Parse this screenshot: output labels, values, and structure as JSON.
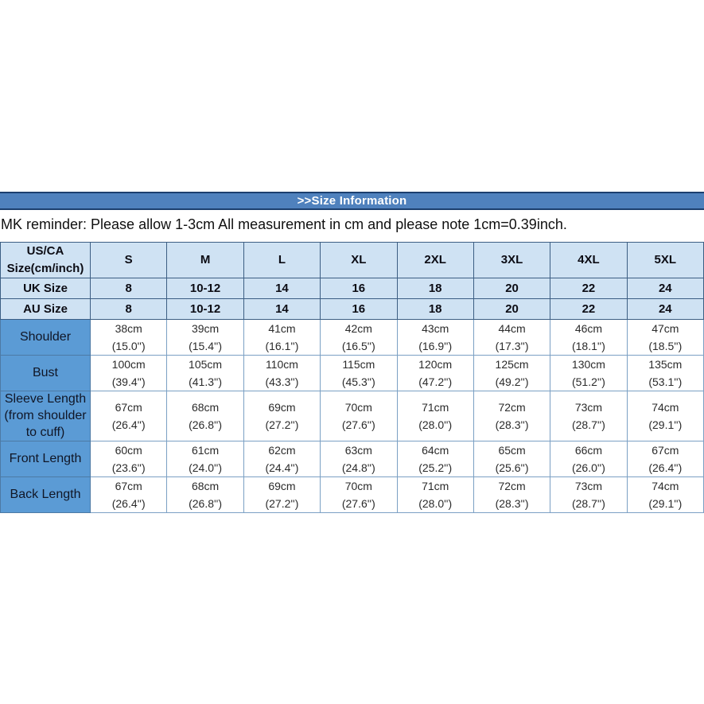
{
  "banner": {
    "title": ">>Size Information"
  },
  "reminder": "MK reminder: Please allow 1-3cm All measurement in cm and please note 1cm=0.39inch.",
  "colors": {
    "banner_bg": "#4f81bd",
    "banner_border": "#1c3f6e",
    "header_cell_bg": "#cfe2f3",
    "label_column_bg": "#5b9bd5",
    "banner_text": "#ffffff"
  },
  "table": {
    "corner_header": "US/CA Size(cm/inch)",
    "size_columns": [
      "S",
      "M",
      "L",
      "XL",
      "2XL",
      "3XL",
      "4XL",
      "5XL"
    ],
    "region_rows": [
      {
        "label": "UK Size",
        "values": [
          "8",
          "10-12",
          "14",
          "16",
          "18",
          "20",
          "22",
          "24"
        ]
      },
      {
        "label": "AU Size",
        "values": [
          "8",
          "10-12",
          "14",
          "16",
          "18",
          "20",
          "22",
          "24"
        ]
      }
    ],
    "measurement_rows": [
      {
        "label": "Shoulder",
        "cells": [
          {
            "cm": "38cm",
            "inch": "(15.0'')"
          },
          {
            "cm": "39cm",
            "inch": "(15.4'')"
          },
          {
            "cm": "41cm",
            "inch": "(16.1'')"
          },
          {
            "cm": "42cm",
            "inch": "(16.5'')"
          },
          {
            "cm": "43cm",
            "inch": "(16.9'')"
          },
          {
            "cm": "44cm",
            "inch": "(17.3'')"
          },
          {
            "cm": "46cm",
            "inch": "(18.1'')"
          },
          {
            "cm": "47cm",
            "inch": "(18.5'')"
          }
        ]
      },
      {
        "label": "Bust",
        "cells": [
          {
            "cm": "100cm",
            "inch": "(39.4'')"
          },
          {
            "cm": "105cm",
            "inch": "(41.3'')"
          },
          {
            "cm": "110cm",
            "inch": "(43.3'')"
          },
          {
            "cm": "115cm",
            "inch": "(45.3'')"
          },
          {
            "cm": "120cm",
            "inch": "(47.2'')"
          },
          {
            "cm": "125cm",
            "inch": "(49.2'')"
          },
          {
            "cm": "130cm",
            "inch": "(51.2'')"
          },
          {
            "cm": "135cm",
            "inch": "(53.1'')"
          }
        ]
      },
      {
        "label": "Sleeve Length (from shoulder to cuff)",
        "cells": [
          {
            "cm": "67cm",
            "inch": "(26.4'')"
          },
          {
            "cm": "68cm",
            "inch": "(26.8'')"
          },
          {
            "cm": "69cm",
            "inch": "(27.2'')"
          },
          {
            "cm": "70cm",
            "inch": "(27.6'')"
          },
          {
            "cm": "71cm",
            "inch": "(28.0'')"
          },
          {
            "cm": "72cm",
            "inch": "(28.3'')"
          },
          {
            "cm": "73cm",
            "inch": "(28.7'')"
          },
          {
            "cm": "74cm",
            "inch": "(29.1'')"
          }
        ]
      },
      {
        "label": "Front Length",
        "cells": [
          {
            "cm": "60cm",
            "inch": "(23.6'')"
          },
          {
            "cm": "61cm",
            "inch": "(24.0'')"
          },
          {
            "cm": "62cm",
            "inch": "(24.4'')"
          },
          {
            "cm": "63cm",
            "inch": "(24.8'')"
          },
          {
            "cm": "64cm",
            "inch": "(25.2'')"
          },
          {
            "cm": "65cm",
            "inch": "(25.6'')"
          },
          {
            "cm": "66cm",
            "inch": "(26.0'')"
          },
          {
            "cm": "67cm",
            "inch": "(26.4'')"
          }
        ]
      },
      {
        "label": "Back Length",
        "cells": [
          {
            "cm": "67cm",
            "inch": "(26.4'')"
          },
          {
            "cm": "68cm",
            "inch": "(26.8'')"
          },
          {
            "cm": "69cm",
            "inch": "(27.2'')"
          },
          {
            "cm": "70cm",
            "inch": "(27.6'')"
          },
          {
            "cm": "71cm",
            "inch": "(28.0'')"
          },
          {
            "cm": "72cm",
            "inch": "(28.3'')"
          },
          {
            "cm": "73cm",
            "inch": "(28.7'')"
          },
          {
            "cm": "74cm",
            "inch": "(29.1'')"
          }
        ]
      }
    ]
  }
}
